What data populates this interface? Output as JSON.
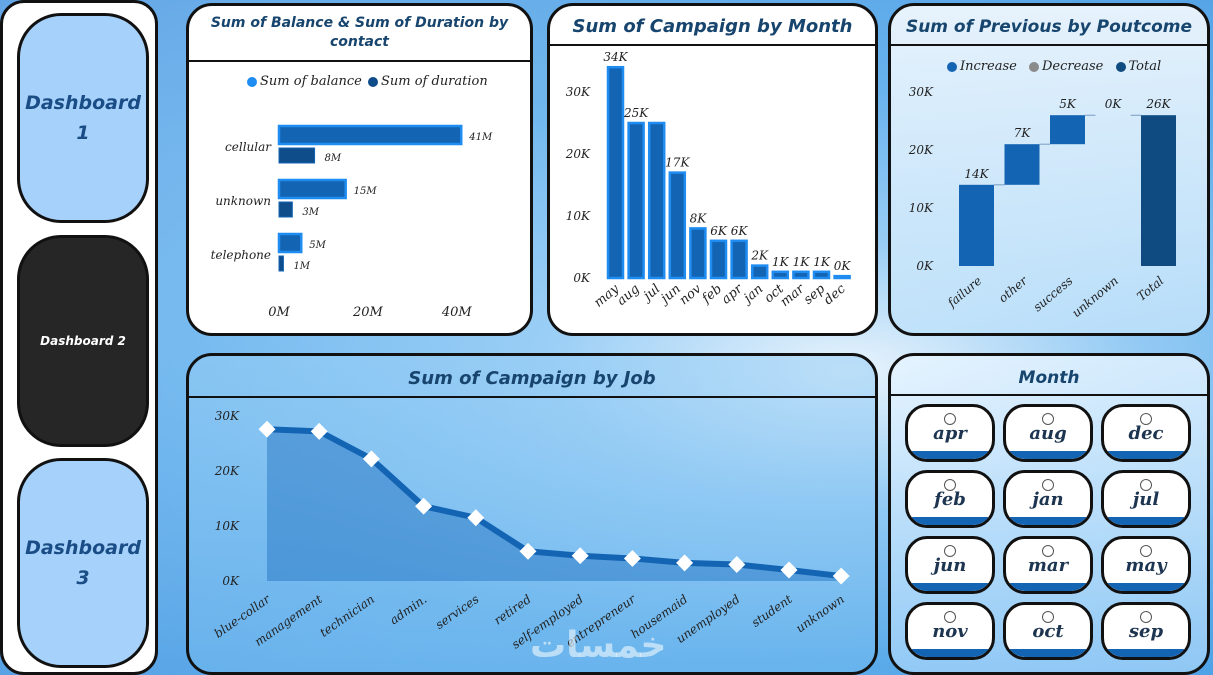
{
  "nav": {
    "items": [
      {
        "label": "Dashboard 1"
      },
      {
        "label": "Dashboard 2"
      },
      {
        "label": "Dashboard 3"
      }
    ],
    "active_index": 1
  },
  "colors": {
    "primary": "#1464b4",
    "light": "#1e8cf0",
    "dark": "#0e4c8a",
    "total": "#0f4a80",
    "nav_button": "#a6d1fb",
    "nav_active": "#262626"
  },
  "watermark": "خمسات",
  "panels": {
    "contact": {
      "title": "Sum of Balance & Sum of Duration by contact",
      "legend": [
        "Sum of balance",
        "Sum of duration"
      ]
    },
    "month": {
      "title": "Sum of Campaign by Month"
    },
    "poutcome": {
      "title": "Sum of Previous by Poutcome",
      "legend": [
        "Increase",
        "Decrease",
        "Total"
      ]
    },
    "job": {
      "title": "Sum of Campaign by Job"
    },
    "slicer": {
      "title": "Month",
      "options": [
        "apr",
        "aug",
        "dec",
        "feb",
        "jan",
        "jul",
        "jun",
        "mar",
        "may",
        "nov",
        "oct",
        "sep"
      ]
    }
  },
  "chart_data": [
    {
      "id": "contact",
      "type": "bar",
      "orientation": "horizontal",
      "title": "Sum of Balance & Sum of Duration by contact",
      "categories": [
        "cellular",
        "unknown",
        "telephone"
      ],
      "series": [
        {
          "name": "Sum of balance",
          "values": [
            41,
            15,
            5
          ],
          "labels": [
            "41M",
            "15M",
            "5M"
          ]
        },
        {
          "name": "Sum of duration",
          "values": [
            8,
            3,
            1
          ],
          "labels": [
            "8M",
            "3M",
            "1M"
          ]
        }
      ],
      "x_ticks": [
        "0M",
        "20M",
        "40M"
      ],
      "xlim": [
        0,
        45
      ],
      "unit": "M",
      "legend_position": "top"
    },
    {
      "id": "month",
      "type": "bar",
      "title": "Sum of Campaign by Month",
      "categories": [
        "may",
        "aug",
        "jul",
        "jun",
        "nov",
        "feb",
        "apr",
        "jan",
        "oct",
        "mar",
        "sep",
        "dec"
      ],
      "values": [
        34,
        25,
        25,
        17,
        8,
        6,
        6,
        2,
        1,
        1,
        1,
        0.3
      ],
      "labels": [
        "34K",
        "25K",
        "",
        "17K",
        "8K",
        "6K",
        "6K",
        "2K",
        "1K",
        "1K",
        "1K",
        "0K"
      ],
      "y_ticks": [
        "0K",
        "10K",
        "20K",
        "30K"
      ],
      "ylim": [
        0,
        35
      ],
      "unit": "K"
    },
    {
      "id": "poutcome",
      "type": "waterfall",
      "title": "Sum of Previous by Poutcome",
      "categories": [
        "failure",
        "other",
        "success",
        "unknown",
        "Total"
      ],
      "values": [
        14,
        7,
        5,
        0,
        26
      ],
      "labels": [
        "14K",
        "7K",
        "5K",
        "0K",
        "26K"
      ],
      "y_ticks": [
        "0K",
        "10K",
        "20K",
        "30K"
      ],
      "ylim": [
        0,
        30
      ],
      "legend": [
        "Increase",
        "Decrease",
        "Total"
      ],
      "legend_position": "top"
    },
    {
      "id": "job",
      "type": "area",
      "title": "Sum of Campaign by Job",
      "categories": [
        "blue-collar",
        "management",
        "technician",
        "admin.",
        "services",
        "retired",
        "self-employed",
        "entrepreneur",
        "housemaid",
        "unemployed",
        "student",
        "unknown"
      ],
      "values": [
        27.6,
        27.2,
        22.2,
        13.6,
        11.5,
        5.4,
        4.6,
        4.1,
        3.3,
        3.0,
        2.0,
        0.9
      ],
      "y_ticks": [
        "0K",
        "10K",
        "20K",
        "30K"
      ],
      "ylim": [
        0,
        30
      ],
      "unit": "K"
    }
  ]
}
